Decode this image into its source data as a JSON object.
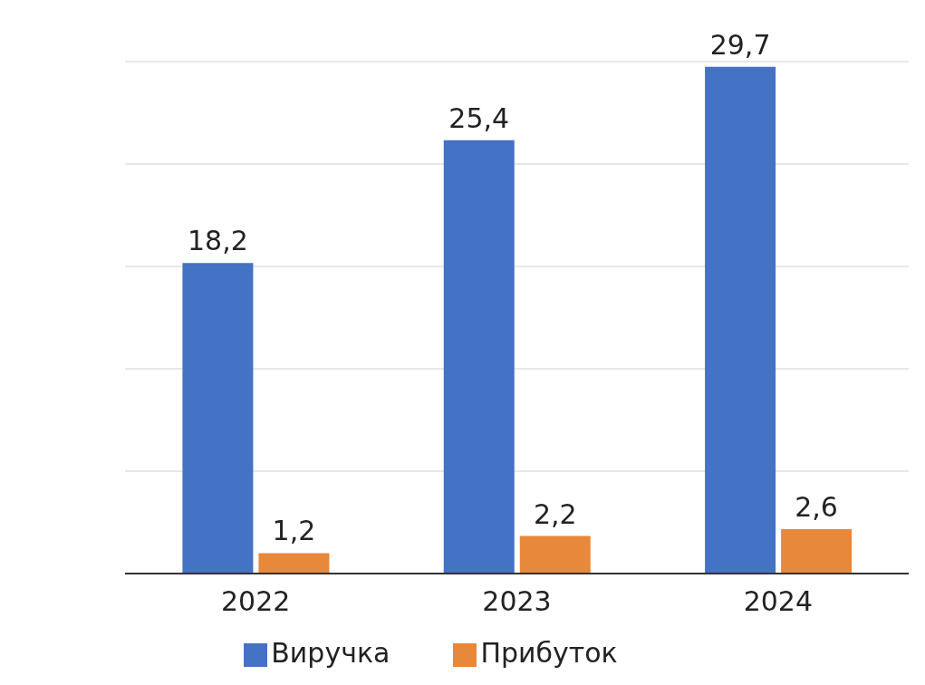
{
  "chart_data": {
    "type": "bar",
    "categories": [
      "2022",
      "2023",
      "2024"
    ],
    "series": [
      {
        "name": "Виручка",
        "color": "#4472c4",
        "values": [
          18.2,
          25.4,
          29.7
        ],
        "value_labels": [
          "18,2",
          "25,4",
          "29,7"
        ]
      },
      {
        "name": "Прибуток",
        "color": "#e8883a",
        "values": [
          1.2,
          2.2,
          2.6
        ],
        "value_labels": [
          "1,2",
          "2,2",
          "2,6"
        ]
      }
    ],
    "tick_labels": "x",
    "grid": "y",
    "legend": "bottom"
  }
}
